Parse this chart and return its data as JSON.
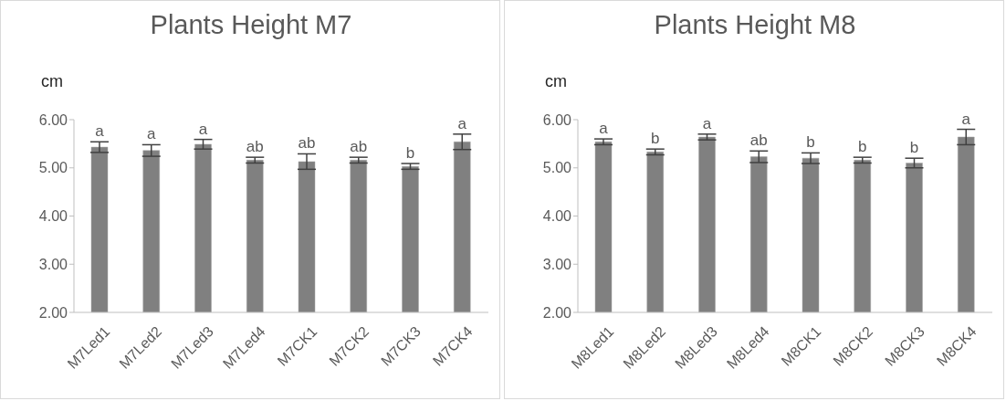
{
  "chart_data": [
    {
      "type": "bar",
      "title": "Plants Height M7",
      "ylabel": "cm",
      "categories": [
        "M7Led1",
        "M7Led2",
        "M7Led3",
        "M7Led4",
        "M7CK1",
        "M7CK2",
        "M7CK3",
        "M7CK4"
      ],
      "values": [
        5.43,
        5.36,
        5.49,
        5.16,
        5.13,
        5.16,
        5.03,
        5.54
      ],
      "errors": [
        0.11,
        0.12,
        0.1,
        0.06,
        0.16,
        0.06,
        0.06,
        0.16
      ],
      "value_labels": [
        "a",
        "a",
        "a",
        "ab",
        "ab",
        "ab",
        "b",
        "a"
      ],
      "color": "#808080",
      "ylim": [
        2,
        6
      ],
      "yticks": [
        {
          "value": 2,
          "label": "2.00"
        },
        {
          "value": 3,
          "label": "3.00"
        },
        {
          "value": 4,
          "label": "4.00"
        },
        {
          "value": 5,
          "label": "5.00"
        },
        {
          "value": 6,
          "label": "6.00"
        }
      ],
      "grid": false,
      "legend": false
    },
    {
      "type": "bar",
      "title": "Plants Height M8",
      "ylabel": "cm",
      "categories": [
        "M8Led1",
        "M8Led2",
        "M8Led3",
        "M8Led4",
        "M8CK1",
        "M8CK2",
        "M8CK3",
        "M8CK4"
      ],
      "values": [
        5.54,
        5.33,
        5.64,
        5.23,
        5.2,
        5.16,
        5.1,
        5.64
      ],
      "errors": [
        0.06,
        0.06,
        0.06,
        0.12,
        0.11,
        0.06,
        0.1,
        0.16
      ],
      "value_labels": [
        "a",
        "b",
        "a",
        "ab",
        "b",
        "b",
        "b",
        "a"
      ],
      "color": "#808080",
      "ylim": [
        2,
        6
      ],
      "yticks": [
        {
          "value": 2,
          "label": "2.00"
        },
        {
          "value": 3,
          "label": "3.00"
        },
        {
          "value": 4,
          "label": "4.00"
        },
        {
          "value": 5,
          "label": "5.00"
        },
        {
          "value": 6,
          "label": "6.00"
        }
      ],
      "grid": false,
      "legend": false
    }
  ]
}
